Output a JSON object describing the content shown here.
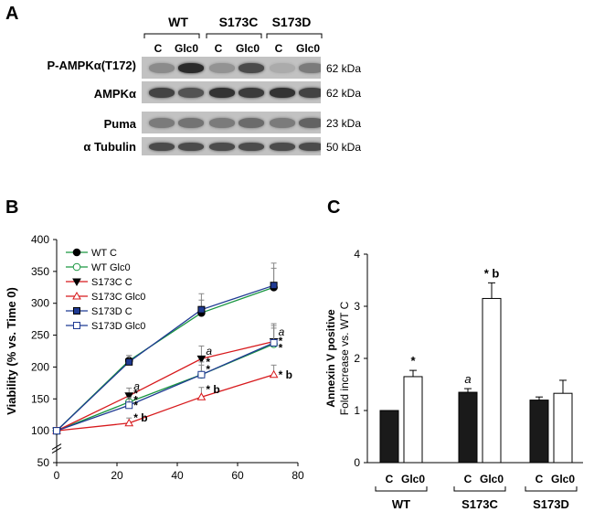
{
  "panelA": {
    "letter": "A",
    "groups": [
      "WT",
      "S173C",
      "S173D"
    ],
    "lanes": [
      "C",
      "Glc0",
      "C",
      "Glc0",
      "C",
      "Glc0"
    ],
    "rows": [
      {
        "label": "P-AMPKα(T172)",
        "kda": "62 kDa",
        "intensities": [
          0.35,
          0.95,
          0.3,
          0.75,
          0.15,
          0.45
        ]
      },
      {
        "label": "AMPKα",
        "kda": "62 kDa",
        "intensities": [
          0.8,
          0.7,
          0.9,
          0.85,
          0.9,
          0.8
        ]
      },
      {
        "label": "Puma",
        "kda": "23 kDa",
        "intensities": [
          0.45,
          0.5,
          0.45,
          0.55,
          0.45,
          0.6
        ]
      },
      {
        "label": "α Tubulin",
        "kda": "50 kDa",
        "intensities": [
          0.75,
          0.75,
          0.75,
          0.75,
          0.75,
          0.75
        ]
      }
    ]
  },
  "panelB": {
    "letter": "B",
    "chart_data": {
      "type": "line",
      "ylabel": "Viability (% vs. Time 0)",
      "xlim": [
        0,
        80
      ],
      "ylim": [
        50,
        400
      ],
      "xticks": [
        0,
        20,
        40,
        60,
        80
      ],
      "yticks": [
        50,
        100,
        150,
        200,
        250,
        300,
        350,
        400
      ],
      "x": [
        0,
        24,
        48,
        72
      ],
      "series": [
        {
          "name": "WT C",
          "color": "#1a9641",
          "marker": "circle-filled",
          "values": [
            100,
            210,
            285,
            325
          ],
          "errors": [
            0,
            8,
            20,
            30
          ]
        },
        {
          "name": "WT Glc0",
          "color": "#1a9641",
          "marker": "circle-open",
          "values": [
            100,
            145,
            188,
            236
          ],
          "errors": [
            0,
            10,
            15,
            25
          ]
        },
        {
          "name": "S173C C",
          "color": "#d7191c",
          "marker": "triangle-down-filled",
          "values": [
            100,
            155,
            213,
            240
          ],
          "errors": [
            0,
            12,
            20,
            25
          ]
        },
        {
          "name": "S173C Glc0",
          "color": "#d7191c",
          "marker": "triangle-up-open",
          "values": [
            100,
            112,
            153,
            188
          ],
          "errors": [
            0,
            8,
            15,
            15
          ]
        },
        {
          "name": "S173D C",
          "color": "#1f3a93",
          "marker": "square-filled",
          "values": [
            100,
            208,
            290,
            328
          ],
          "errors": [
            0,
            10,
            25,
            35
          ]
        },
        {
          "name": "S173D Glc0",
          "color": "#1f3a93",
          "marker": "square-open",
          "values": [
            100,
            140,
            188,
            238
          ],
          "errors": [
            0,
            12,
            20,
            30
          ]
        }
      ],
      "annotations": [
        {
          "x": 24,
          "y": 170,
          "text": "a",
          "italic": true
        },
        {
          "x": 24,
          "y": 158,
          "text": "*"
        },
        {
          "x": 24,
          "y": 148,
          "text": "*"
        },
        {
          "x": 24,
          "y": 140,
          "text": "*"
        },
        {
          "x": 24,
          "y": 120,
          "text": "* b"
        },
        {
          "x": 48,
          "y": 225,
          "text": "a",
          "italic": true
        },
        {
          "x": 48,
          "y": 208,
          "text": "*"
        },
        {
          "x": 48,
          "y": 196,
          "text": "*"
        },
        {
          "x": 48,
          "y": 165,
          "text": "* b"
        },
        {
          "x": 72,
          "y": 255,
          "text": "a",
          "italic": true
        },
        {
          "x": 72,
          "y": 241,
          "text": "*"
        },
        {
          "x": 72,
          "y": 230,
          "text": "*"
        },
        {
          "x": 72,
          "y": 188,
          "text": "* b"
        }
      ]
    }
  },
  "panelC": {
    "letter": "C",
    "chart_data": {
      "type": "bar",
      "ylabel_line1": "Annexin V positive",
      "ylabel_line2": "Fold increase vs. WT C",
      "ylim": [
        0,
        4
      ],
      "yticks": [
        0,
        1,
        2,
        3,
        4
      ],
      "groups": [
        "WT",
        "S173C",
        "S173D"
      ],
      "categories": [
        "C",
        "Glc0",
        "C",
        "Glc0",
        "C",
        "Glc0"
      ],
      "values": [
        1.0,
        1.65,
        1.35,
        3.15,
        1.2,
        1.33
      ],
      "errors": [
        0,
        0.12,
        0.07,
        0.3,
        0.06,
        0.25
      ],
      "fills": [
        "#1a1a1a",
        "#ffffff",
        "#1a1a1a",
        "#ffffff",
        "#1a1a1a",
        "#ffffff"
      ],
      "annotations": [
        {
          "bar": 1,
          "text": "*"
        },
        {
          "bar": 2,
          "text": "a",
          "italic": true
        },
        {
          "bar": 3,
          "text": "* b"
        }
      ]
    }
  }
}
